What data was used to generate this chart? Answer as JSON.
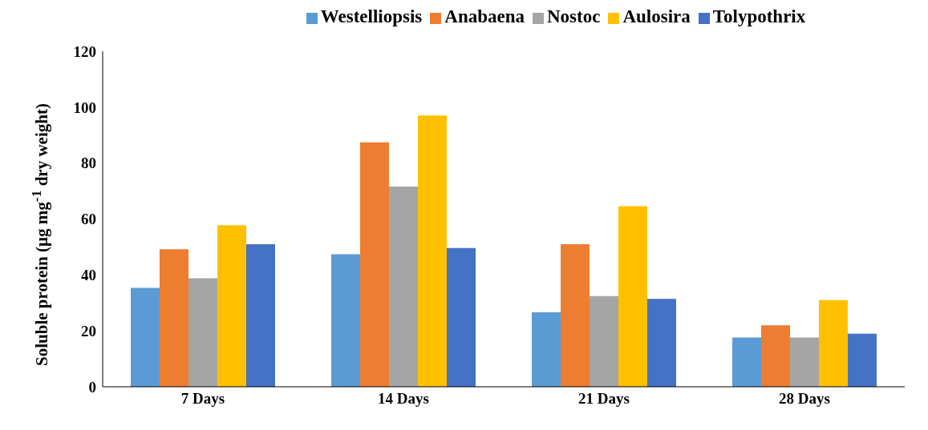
{
  "chart_data": {
    "type": "bar",
    "ylabel": "Soluble protein (µg mg$^{-1}$ dry weight)",
    "categories": [
      "7 Days",
      "14 Days",
      "21 Days",
      "28 Days"
    ],
    "series": [
      {
        "name": "Westelliopsis",
        "color": "#5b9bd5",
        "values": [
          35.4,
          47.4,
          26.6,
          17.6
        ]
      },
      {
        "name": "Anabaena",
        "color": "#ed7d31",
        "values": [
          49.2,
          87.4,
          51,
          22
        ]
      },
      {
        "name": "Nostoc",
        "color": "#a5a5a5",
        "values": [
          38.8,
          71.6,
          32.4,
          17.6
        ]
      },
      {
        "name": "Aulosira",
        "color": "#ffc000",
        "values": [
          57.8,
          97,
          64.6,
          31
        ]
      },
      {
        "name": "Tolypothrix",
        "color": "#4472c4",
        "values": [
          51,
          49.6,
          31.4,
          19
        ]
      }
    ],
    "ylim": [
      0,
      120
    ],
    "yticks": [
      0,
      20,
      40,
      60,
      80,
      100,
      120
    ],
    "grid": false,
    "legend": "top"
  }
}
